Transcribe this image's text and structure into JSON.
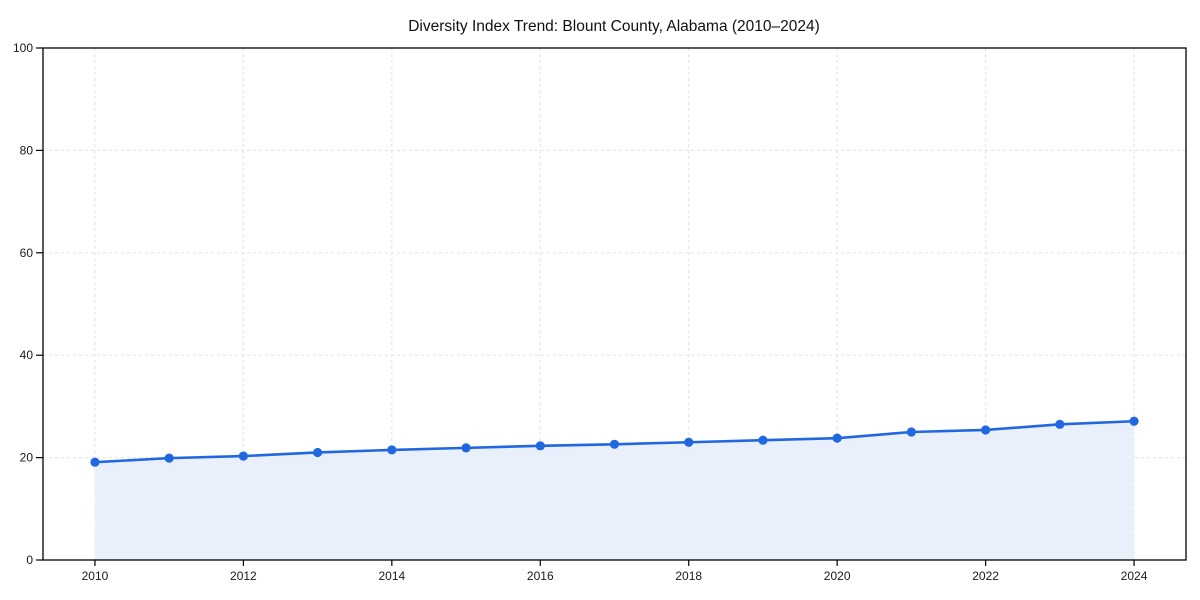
{
  "chart_data": {
    "type": "area",
    "title": "Diversity Index Trend: Blount County, Alabama (2010–2024)",
    "x": [
      2010,
      2011,
      2012,
      2013,
      2014,
      2015,
      2016,
      2017,
      2018,
      2019,
      2020,
      2021,
      2022,
      2023,
      2024
    ],
    "series": [
      {
        "name": "Diversity Index",
        "values": [
          19.1,
          19.9,
          20.3,
          21.0,
          21.5,
          21.9,
          22.3,
          22.6,
          23.0,
          23.4,
          23.8,
          25.0,
          25.4,
          26.5,
          27.1
        ]
      }
    ],
    "xlabel": "",
    "ylabel": "",
    "xlim": [
      2009.3,
      2024.7
    ],
    "ylim": [
      0,
      100
    ],
    "x_ticks": [
      2010,
      2012,
      2014,
      2016,
      2018,
      2020,
      2022,
      2024
    ],
    "y_ticks": [
      0,
      20,
      40,
      60,
      80,
      100
    ],
    "grid": "dashed",
    "legend": false,
    "colors": {
      "line": "#2167e0",
      "marker": "#2167e0",
      "fill": "#e9f0fc",
      "grid": "#e6e6e6",
      "axis": "#000000",
      "tick_label": "#1a1a1a",
      "title": "#111111",
      "background": "#ffffff"
    }
  }
}
